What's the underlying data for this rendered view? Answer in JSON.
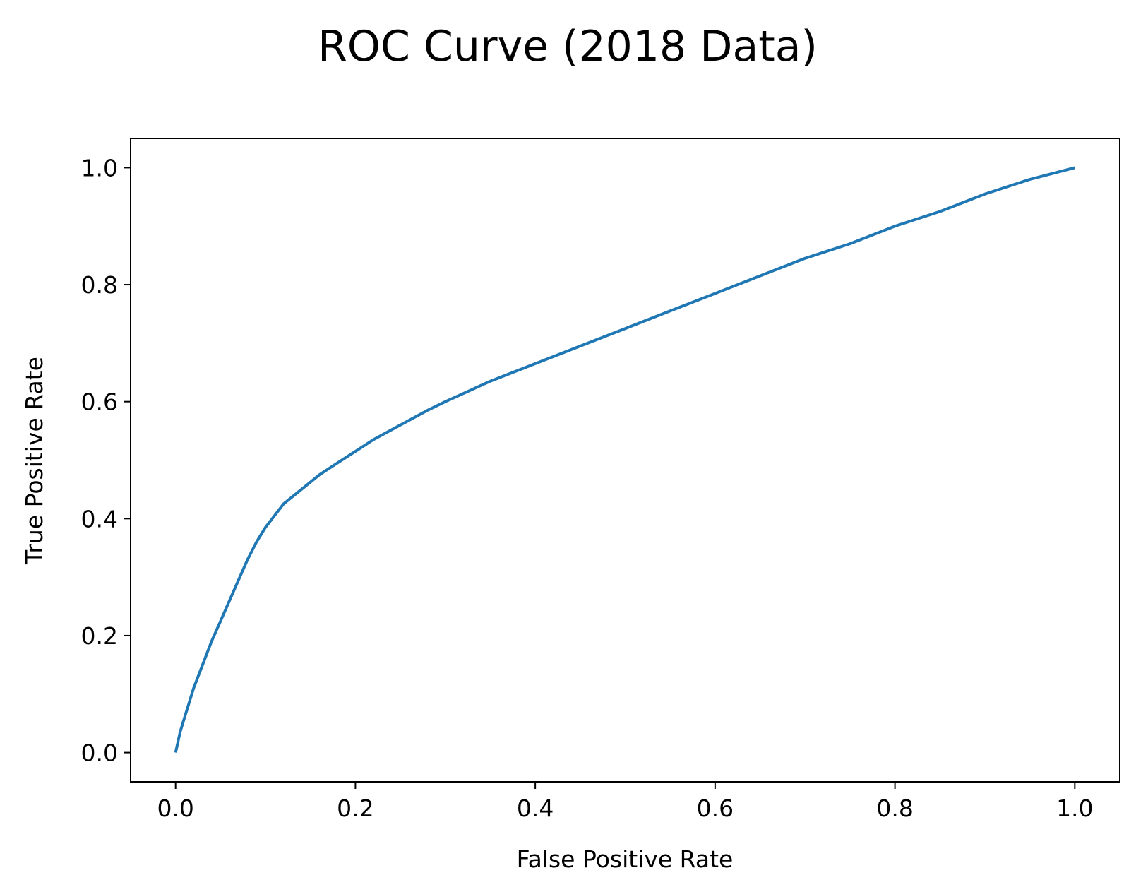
{
  "chart_data": {
    "type": "line",
    "title": "ROC Curve (2018 Data)",
    "xlabel": "False Positive Rate",
    "ylabel": "True Positive Rate",
    "xlim": [
      -0.05,
      1.05
    ],
    "ylim": [
      -0.05,
      1.05
    ],
    "x_ticks": [
      0.0,
      0.2,
      0.4,
      0.6,
      0.8,
      1.0
    ],
    "x_tick_labels": [
      "0.0",
      "0.2",
      "0.4",
      "0.6",
      "0.8",
      "1.0"
    ],
    "y_ticks": [
      0.0,
      0.2,
      0.4,
      0.6,
      0.8,
      1.0
    ],
    "y_tick_labels": [
      "0.0",
      "0.2",
      "0.4",
      "0.6",
      "0.8",
      "1.0"
    ],
    "grid": false,
    "series": [
      {
        "color": "#1f77b4",
        "x": [
          0.0,
          0.005,
          0.01,
          0.02,
          0.03,
          0.04,
          0.05,
          0.06,
          0.07,
          0.08,
          0.09,
          0.1,
          0.11,
          0.12,
          0.14,
          0.16,
          0.18,
          0.2,
          0.22,
          0.25,
          0.28,
          0.3,
          0.35,
          0.4,
          0.45,
          0.5,
          0.55,
          0.6,
          0.65,
          0.7,
          0.75,
          0.8,
          0.85,
          0.9,
          0.95,
          1.0
        ],
        "y": [
          0.0,
          0.035,
          0.06,
          0.11,
          0.15,
          0.19,
          0.225,
          0.26,
          0.295,
          0.33,
          0.36,
          0.385,
          0.405,
          0.425,
          0.45,
          0.475,
          0.495,
          0.515,
          0.535,
          0.56,
          0.585,
          0.6,
          0.635,
          0.665,
          0.695,
          0.725,
          0.755,
          0.785,
          0.815,
          0.845,
          0.87,
          0.9,
          0.925,
          0.955,
          0.98,
          1.0
        ]
      }
    ]
  }
}
